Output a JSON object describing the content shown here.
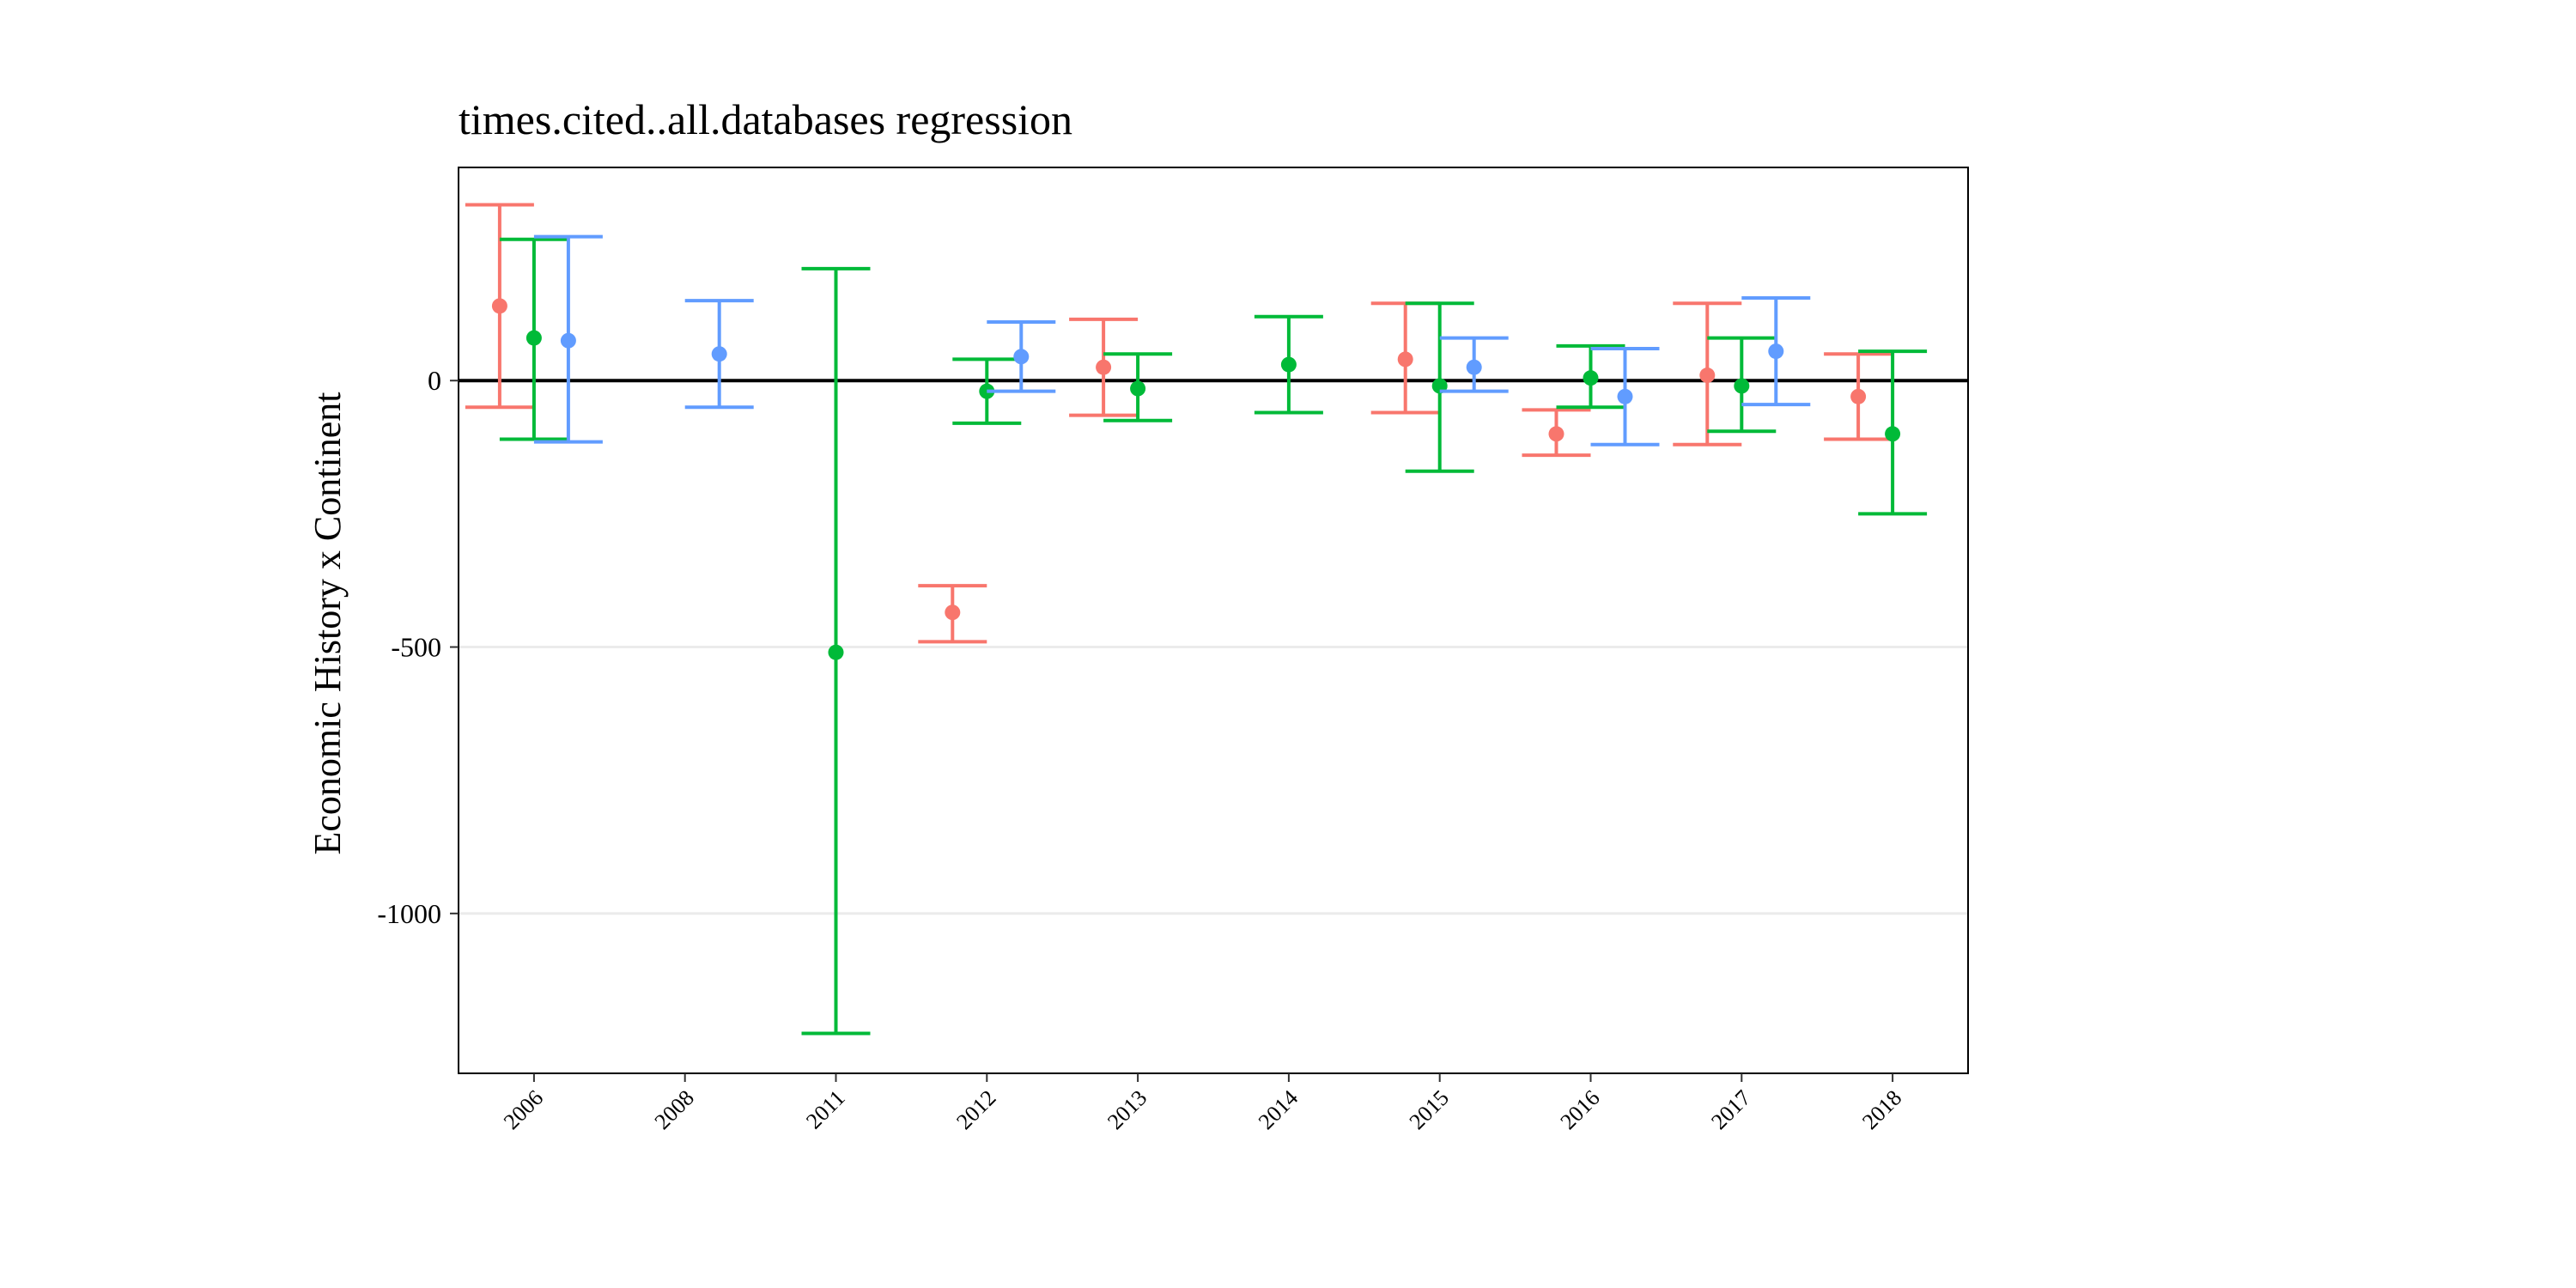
{
  "chart_data": {
    "type": "errorbar",
    "title": "times.cited..all.databases regression",
    "xlabel": "",
    "ylabel": "Economic History x Continent",
    "categories": [
      "2006",
      "2008",
      "2011",
      "2012",
      "2013",
      "2014",
      "2015",
      "2016",
      "2017",
      "2018"
    ],
    "ylim": [
      -1300,
      400
    ],
    "yticks": [
      -1000,
      -500,
      0
    ],
    "ytick_labels": [
      "-1000",
      "-500",
      "0"
    ],
    "reference_line": 0,
    "grid": "horizontal-major",
    "legend": "none",
    "series_colors": [
      "#F8766D",
      "#00BA38",
      "#619CFF"
    ],
    "series": [
      {
        "color": "#F8766D",
        "points": [
          {
            "x": "2006",
            "y": 140,
            "lo": -50,
            "hi": 330
          },
          {
            "x": "2012",
            "y": -435,
            "lo": -490,
            "hi": -385
          },
          {
            "x": "2013",
            "y": 25,
            "lo": -65,
            "hi": 115
          },
          {
            "x": "2015",
            "y": 40,
            "lo": -60,
            "hi": 145
          },
          {
            "x": "2016",
            "y": -100,
            "lo": -140,
            "hi": -55
          },
          {
            "x": "2017",
            "y": 10,
            "lo": -120,
            "hi": 145
          },
          {
            "x": "2018",
            "y": -30,
            "lo": -110,
            "hi": 50
          }
        ]
      },
      {
        "color": "#00BA38",
        "points": [
          {
            "x": "2006",
            "y": 80,
            "lo": -110,
            "hi": 265
          },
          {
            "x": "2011",
            "y": -510,
            "lo": -1225,
            "hi": 210
          },
          {
            "x": "2012",
            "y": -20,
            "lo": -80,
            "hi": 40
          },
          {
            "x": "2013",
            "y": -15,
            "lo": -75,
            "hi": 50
          },
          {
            "x": "2014",
            "y": 30,
            "lo": -60,
            "hi": 120
          },
          {
            "x": "2015",
            "y": -10,
            "lo": -170,
            "hi": 145
          },
          {
            "x": "2016",
            "y": 5,
            "lo": -50,
            "hi": 65
          },
          {
            "x": "2017",
            "y": -10,
            "lo": -95,
            "hi": 80
          },
          {
            "x": "2018",
            "y": -100,
            "lo": -250,
            "hi": 55
          }
        ]
      },
      {
        "color": "#619CFF",
        "points": [
          {
            "x": "2006",
            "y": 75,
            "lo": -115,
            "hi": 270
          },
          {
            "x": "2008",
            "y": 50,
            "lo": -50,
            "hi": 150
          },
          {
            "x": "2012",
            "y": 45,
            "lo": -20,
            "hi": 110
          },
          {
            "x": "2015",
            "y": 25,
            "lo": -20,
            "hi": 80
          },
          {
            "x": "2016",
            "y": -30,
            "lo": -120,
            "hi": 60
          },
          {
            "x": "2017",
            "y": 55,
            "lo": -45,
            "hi": 155
          }
        ]
      }
    ]
  }
}
